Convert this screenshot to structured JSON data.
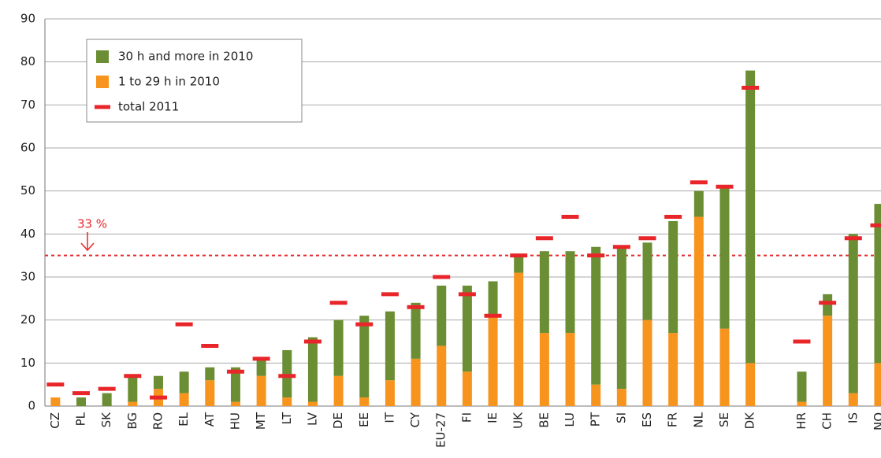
{
  "chart_data": {
    "type": "bar",
    "categories": [
      "CZ",
      "PL",
      "SK",
      "BG",
      "RO",
      "EL",
      "AT",
      "HU",
      "MT",
      "LT",
      "LV",
      "DE",
      "EE",
      "IT",
      "CY",
      "EU-27",
      "FI",
      "IE",
      "UK",
      "BE",
      "LU",
      "PT",
      "SI",
      "ES",
      "FR",
      "NL",
      "SE",
      "DK",
      null,
      "HR",
      "CH",
      "IS",
      "NO"
    ],
    "series": [
      {
        "name": "30 h and more in 2010",
        "color": "#6b8e34",
        "style": "bar",
        "values": [
          0,
          2,
          3,
          6,
          3,
          5,
          3,
          8,
          4,
          11,
          15,
          13,
          19,
          16,
          13,
          14,
          20,
          8,
          4,
          19,
          19,
          32,
          33,
          18,
          26,
          6,
          33,
          68,
          null,
          7,
          5,
          37,
          37
        ]
      },
      {
        "name": "1 to 29 h in 2010",
        "color": "#f7941d",
        "style": "bar",
        "values": [
          2,
          0,
          0,
          1,
          4,
          3,
          6,
          1,
          7,
          2,
          1,
          7,
          2,
          6,
          11,
          14,
          8,
          21,
          31,
          17,
          17,
          5,
          4,
          20,
          17,
          44,
          18,
          10,
          null,
          1,
          21,
          3,
          10
        ]
      },
      {
        "name": "total 2011",
        "color": "#e8262a",
        "style": "dash",
        "values": [
          5,
          3,
          4,
          7,
          2,
          19,
          14,
          8,
          11,
          7,
          15,
          24,
          19,
          26,
          23,
          30,
          26,
          21,
          35,
          39,
          44,
          35,
          37,
          39,
          44,
          52,
          51,
          74,
          null,
          15,
          24,
          39,
          42
        ]
      }
    ],
    "ylim": [
      0,
      90
    ],
    "yticks": [
      0,
      10,
      20,
      30,
      40,
      50,
      60,
      70,
      80,
      90
    ],
    "grid": true,
    "reference_line": {
      "value": 35,
      "label": "33 %",
      "color": "#e8262a"
    }
  }
}
